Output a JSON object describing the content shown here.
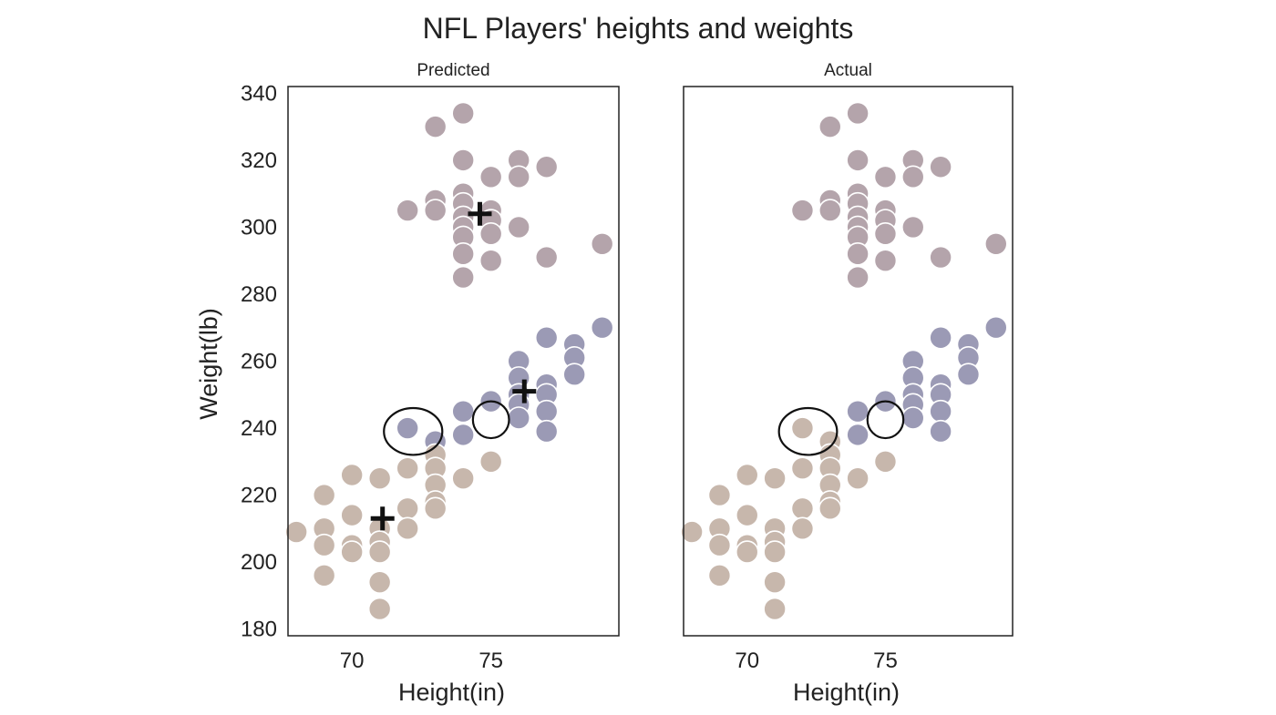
{
  "chart_data": {
    "type": "scatter",
    "title": "NFL Players' heights and weights",
    "xlabel": "Height(in)",
    "ylabel": "Weight(lb)",
    "xlim": [
      67.7,
      79.6
    ],
    "ylim": [
      178,
      342
    ],
    "x_ticks": [
      70,
      75
    ],
    "y_ticks": [
      180,
      200,
      220,
      240,
      260,
      280,
      300,
      320,
      340
    ],
    "grid": false,
    "legend": "none",
    "colors": {
      "cluster_heavy": "#b4a4ab",
      "cluster_mid": "#9b9ab5",
      "cluster_light": "#c7b7ac",
      "centroid": "#111111",
      "highlight_ellipse": "#111111"
    },
    "points": [
      {
        "x": 73,
        "y": 330,
        "c": "heavy"
      },
      {
        "x": 74,
        "y": 334,
        "c": "heavy"
      },
      {
        "x": 74,
        "y": 320,
        "c": "heavy"
      },
      {
        "x": 76,
        "y": 320,
        "c": "heavy"
      },
      {
        "x": 76,
        "y": 315,
        "c": "heavy"
      },
      {
        "x": 75,
        "y": 315,
        "c": "heavy"
      },
      {
        "x": 77,
        "y": 318,
        "c": "heavy"
      },
      {
        "x": 72,
        "y": 305,
        "c": "heavy"
      },
      {
        "x": 73,
        "y": 308,
        "c": "heavy"
      },
      {
        "x": 73,
        "y": 305,
        "c": "heavy"
      },
      {
        "x": 74,
        "y": 310,
        "c": "heavy"
      },
      {
        "x": 74,
        "y": 307,
        "c": "heavy"
      },
      {
        "x": 74,
        "y": 303,
        "c": "heavy"
      },
      {
        "x": 74,
        "y": 300,
        "c": "heavy"
      },
      {
        "x": 74,
        "y": 297,
        "c": "heavy"
      },
      {
        "x": 74,
        "y": 292,
        "c": "heavy"
      },
      {
        "x": 74,
        "y": 285,
        "c": "heavy"
      },
      {
        "x": 75,
        "y": 305,
        "c": "heavy"
      },
      {
        "x": 75,
        "y": 302,
        "c": "heavy"
      },
      {
        "x": 75,
        "y": 298,
        "c": "heavy"
      },
      {
        "x": 75,
        "y": 290,
        "c": "heavy"
      },
      {
        "x": 76,
        "y": 300,
        "c": "heavy"
      },
      {
        "x": 77,
        "y": 291,
        "c": "heavy"
      },
      {
        "x": 79,
        "y": 295,
        "c": "heavy"
      },
      {
        "x": 79,
        "y": 270,
        "c": "mid"
      },
      {
        "x": 77,
        "y": 267,
        "c": "mid"
      },
      {
        "x": 78,
        "y": 265,
        "c": "mid"
      },
      {
        "x": 78,
        "y": 261,
        "c": "mid"
      },
      {
        "x": 78,
        "y": 256,
        "c": "mid"
      },
      {
        "x": 76,
        "y": 260,
        "c": "mid"
      },
      {
        "x": 76,
        "y": 255,
        "c": "mid"
      },
      {
        "x": 76,
        "y": 250,
        "c": "mid"
      },
      {
        "x": 76,
        "y": 247,
        "c": "mid"
      },
      {
        "x": 76,
        "y": 243,
        "c": "mid"
      },
      {
        "x": 77,
        "y": 253,
        "c": "mid"
      },
      {
        "x": 77,
        "y": 250,
        "c": "mid"
      },
      {
        "x": 77,
        "y": 245,
        "c": "mid"
      },
      {
        "x": 77,
        "y": 239,
        "c": "mid"
      },
      {
        "x": 75,
        "y": 248,
        "c": "mid"
      },
      {
        "x": 74,
        "y": 245,
        "c": "mid"
      },
      {
        "x": 74,
        "y": 238,
        "c": "mid"
      },
      {
        "x": 72,
        "y": 240,
        "c": "mid",
        "actual": "light"
      },
      {
        "x": 73,
        "y": 236,
        "c": "mid",
        "actual": "light"
      },
      {
        "x": 73,
        "y": 232,
        "c": "light"
      },
      {
        "x": 73,
        "y": 228,
        "c": "light"
      },
      {
        "x": 73,
        "y": 223,
        "c": "light"
      },
      {
        "x": 73,
        "y": 218,
        "c": "light"
      },
      {
        "x": 73,
        "y": 216,
        "c": "light"
      },
      {
        "x": 74,
        "y": 225,
        "c": "light"
      },
      {
        "x": 75,
        "y": 230,
        "c": "light"
      },
      {
        "x": 72,
        "y": 228,
        "c": "light"
      },
      {
        "x": 72,
        "y": 216,
        "c": "light"
      },
      {
        "x": 72,
        "y": 210,
        "c": "light"
      },
      {
        "x": 71,
        "y": 225,
        "c": "light"
      },
      {
        "x": 71,
        "y": 210,
        "c": "light"
      },
      {
        "x": 71,
        "y": 206,
        "c": "light"
      },
      {
        "x": 71,
        "y": 203,
        "c": "light"
      },
      {
        "x": 71,
        "y": 194,
        "c": "light"
      },
      {
        "x": 71,
        "y": 186,
        "c": "light"
      },
      {
        "x": 70,
        "y": 226,
        "c": "light"
      },
      {
        "x": 70,
        "y": 214,
        "c": "light"
      },
      {
        "x": 70,
        "y": 205,
        "c": "light"
      },
      {
        "x": 70,
        "y": 203,
        "c": "light"
      },
      {
        "x": 69,
        "y": 220,
        "c": "light"
      },
      {
        "x": 69,
        "y": 210,
        "c": "light"
      },
      {
        "x": 69,
        "y": 205,
        "c": "light"
      },
      {
        "x": 69,
        "y": 196,
        "c": "light"
      },
      {
        "x": 68,
        "y": 209,
        "c": "light"
      }
    ],
    "panels": [
      {
        "subtitle": "Predicted",
        "color_mode": "predicted",
        "show_ylabel": true,
        "show_yticks": true,
        "show_centroids": true
      },
      {
        "subtitle": "Actual",
        "color_mode": "actual",
        "show_ylabel": false,
        "show_yticks": false,
        "show_centroids": false
      }
    ],
    "centroids": [
      {
        "x": 74.6,
        "y": 304
      },
      {
        "x": 76.2,
        "y": 251
      },
      {
        "x": 71.1,
        "y": 213
      }
    ],
    "highlight_ellipses": [
      {
        "x": 72.2,
        "y": 239,
        "rx_in": 1.05,
        "ry_lb": 7
      },
      {
        "x": 75.0,
        "y": 242.5,
        "rx_in": 0.65,
        "ry_lb": 5.5
      }
    ]
  }
}
